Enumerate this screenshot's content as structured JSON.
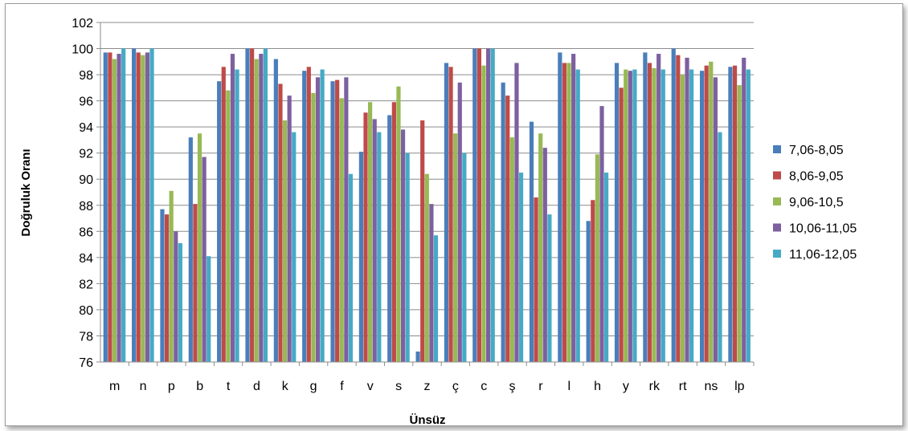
{
  "chart_data": {
    "type": "bar",
    "title": "",
    "xlabel": "Ünsüz",
    "ylabel": "Doğruluk Oranı",
    "ylim": [
      76,
      102
    ],
    "ytick_step": 2,
    "grid": "horizontal",
    "legend_position": "right",
    "categories": [
      "m",
      "n",
      "p",
      "b",
      "t",
      "d",
      "k",
      "g",
      "f",
      "v",
      "s",
      "z",
      "ç",
      "c",
      "ş",
      "r",
      "l",
      "h",
      "y",
      "rk",
      "rt",
      "ns",
      "lp"
    ],
    "series": [
      {
        "name": "7,06-8,05",
        "color": "#4a7ebb",
        "values": [
          99.7,
          100,
          87.7,
          93.2,
          97.5,
          100,
          99.2,
          98.3,
          97.5,
          92.1,
          94.9,
          76.8,
          98.9,
          100,
          97.4,
          94.4,
          99.7,
          86.8,
          98.9,
          99.7,
          100,
          98.3,
          98.6
        ]
      },
      {
        "name": "8,06-9,05",
        "color": "#be4b48",
        "values": [
          99.7,
          99.7,
          87.3,
          88.1,
          98.6,
          100,
          97.3,
          98.6,
          97.6,
          95.1,
          95.9,
          94.5,
          98.6,
          100,
          96.4,
          88.6,
          98.9,
          88.4,
          97.0,
          98.9,
          99.5,
          98.7,
          98.7
        ]
      },
      {
        "name": "9,06-10,5",
        "color": "#98b954",
        "values": [
          99.2,
          99.5,
          89.1,
          93.5,
          96.8,
          99.2,
          94.5,
          96.6,
          96.2,
          95.9,
          97.1,
          90.4,
          93.5,
          98.7,
          93.2,
          93.5,
          98.9,
          91.9,
          98.4,
          98.5,
          98.0,
          99.0,
          97.2
        ]
      },
      {
        "name": "10,06-11,05",
        "color": "#7d60a0",
        "values": [
          99.6,
          99.7,
          86.0,
          91.7,
          99.6,
          99.6,
          96.4,
          97.8,
          97.8,
          94.6,
          93.8,
          88.1,
          97.4,
          100,
          98.9,
          92.4,
          99.6,
          95.6,
          98.3,
          99.6,
          99.3,
          97.8,
          99.3
        ]
      },
      {
        "name": "11,06-12,05",
        "color": "#46aac5",
        "values": [
          100,
          100,
          85.1,
          84.1,
          98.4,
          100,
          93.6,
          98.4,
          90.4,
          93.6,
          92.0,
          85.7,
          92.0,
          100,
          90.5,
          87.3,
          98.4,
          90.5,
          98.4,
          98.4,
          98.4,
          93.6,
          98.4
        ]
      }
    ]
  }
}
